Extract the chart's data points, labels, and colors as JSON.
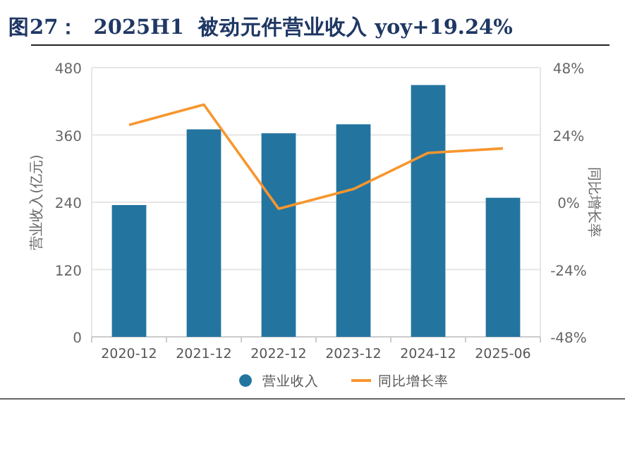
{
  "chart_data": {
    "type": "bar",
    "title": "图27：  2025H1  被动元件营业收入 yoy+19.24%",
    "ylabel": "营业收入(亿元)",
    "y2label": "同比增长率",
    "categories": [
      "2020-12",
      "2021-12",
      "2022-12",
      "2023-12",
      "2024-12",
      "2025-06"
    ],
    "series": [
      {
        "name": "营业收入",
        "color": "#23759f",
        "values": [
          235,
          370,
          363,
          379,
          449,
          248
        ]
      },
      {
        "name": "同比增长率",
        "type": "line",
        "axis": "y2",
        "color": "#f7962e",
        "values": [
          27.6,
          34.8,
          -2.3,
          4.7,
          17.6,
          19.2
        ]
      }
    ],
    "ylim": [
      0,
      480
    ],
    "yticks": [
      0,
      120,
      240,
      360,
      480
    ],
    "y2lim": [
      -48,
      48
    ],
    "y2ticks": [
      {
        "value": -48,
        "label": "-48%"
      },
      {
        "value": -24,
        "label": "-24%"
      },
      {
        "value": 0,
        "label": "0%"
      },
      {
        "value": 24,
        "label": "24%"
      },
      {
        "value": 48,
        "label": "48%"
      }
    ],
    "grid": "y",
    "legend": "bottom"
  }
}
